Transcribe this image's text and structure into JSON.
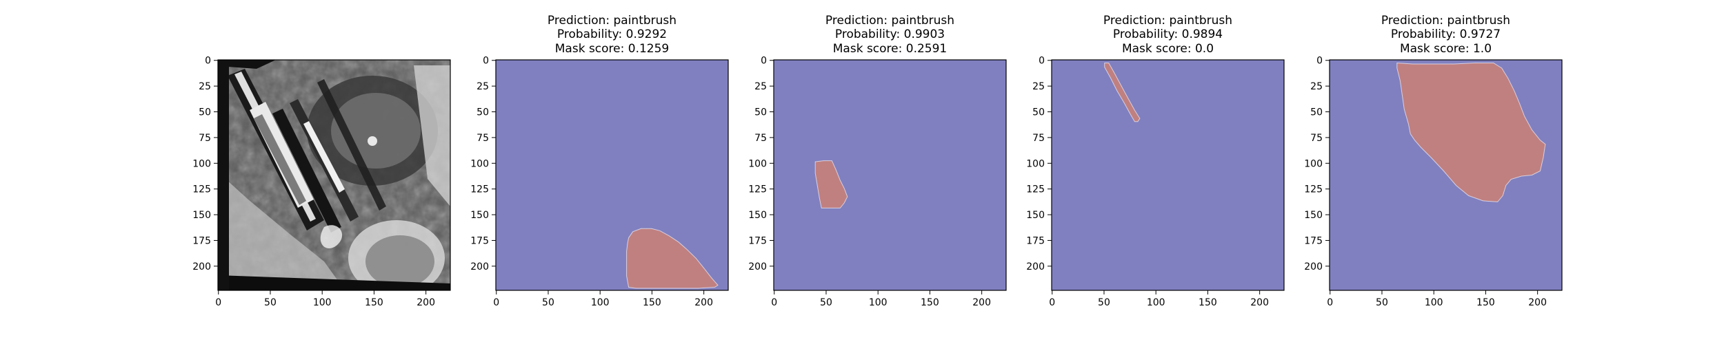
{
  "chart_data": [
    {
      "type": "heatmap",
      "subtype": "grayscale-image",
      "subject": "grayscale photograph of paintbrushes (input image)",
      "title_lines": [],
      "xticks": [
        0,
        50,
        100,
        150,
        200
      ],
      "yticks": [
        0,
        25,
        50,
        75,
        100,
        125,
        150,
        175,
        200
      ],
      "xlim": [
        0,
        224
      ],
      "ylim": [
        224,
        0
      ]
    },
    {
      "type": "heatmap",
      "subtype": "mask",
      "title_lines": [
        "Prediction: paintbrush",
        "Probability: 0.9292",
        "Mask score: 0.1259"
      ],
      "xticks": [
        0,
        50,
        100,
        150,
        200
      ],
      "yticks": [
        0,
        25,
        50,
        75,
        100,
        125,
        150,
        175,
        200
      ],
      "xlim": [
        0,
        224
      ],
      "ylim": [
        224,
        0
      ],
      "background_color": "#8080c0",
      "mask_color": "#c08080",
      "mask_polygon": [
        [
          128,
          173
        ],
        [
          132,
          167
        ],
        [
          140,
          164
        ],
        [
          150,
          164
        ],
        [
          158,
          166
        ],
        [
          167,
          171
        ],
        [
          176,
          177
        ],
        [
          184,
          184
        ],
        [
          193,
          193
        ],
        [
          201,
          203
        ],
        [
          208,
          212
        ],
        [
          214,
          219
        ],
        [
          211,
          221
        ],
        [
          195,
          222
        ],
        [
          180,
          222
        ],
        [
          165,
          222
        ],
        [
          150,
          222
        ],
        [
          135,
          222
        ],
        [
          128,
          221
        ],
        [
          126,
          210
        ],
        [
          126,
          198
        ],
        [
          126,
          186
        ],
        [
          127,
          178
        ]
      ]
    },
    {
      "type": "heatmap",
      "subtype": "mask",
      "title_lines": [
        "Prediction: paintbrush",
        "Probability: 0.9903",
        "Mask score: 0.2591"
      ],
      "xticks": [
        0,
        50,
        100,
        150,
        200
      ],
      "yticks": [
        0,
        25,
        50,
        75,
        100,
        125,
        150,
        175,
        200
      ],
      "xlim": [
        0,
        224
      ],
      "ylim": [
        224,
        0
      ],
      "background_color": "#8080c0",
      "mask_color": "#c08080",
      "mask_polygon": [
        [
          40,
          99
        ],
        [
          48,
          98
        ],
        [
          56,
          98
        ],
        [
          60,
          107
        ],
        [
          64,
          117
        ],
        [
          68,
          125
        ],
        [
          71,
          133
        ],
        [
          68,
          139
        ],
        [
          64,
          144
        ],
        [
          55,
          144
        ],
        [
          46,
          144
        ],
        [
          44,
          134
        ],
        [
          42,
          122
        ],
        [
          40,
          110
        ]
      ]
    },
    {
      "type": "heatmap",
      "subtype": "mask",
      "title_lines": [
        "Prediction: paintbrush",
        "Probability: 0.9894",
        "Mask score: 0.0"
      ],
      "xticks": [
        0,
        50,
        100,
        150,
        200
      ],
      "yticks": [
        0,
        25,
        50,
        75,
        100,
        125,
        150,
        175,
        200
      ],
      "xlim": [
        0,
        224
      ],
      "ylim": [
        224,
        0
      ],
      "background_color": "#8080c0",
      "mask_color": "#c08080",
      "mask_polygon": [
        [
          51,
          3
        ],
        [
          55,
          3
        ],
        [
          60,
          12
        ],
        [
          67,
          25
        ],
        [
          74,
          38
        ],
        [
          80,
          49
        ],
        [
          85,
          57
        ],
        [
          83,
          60
        ],
        [
          80,
          60
        ],
        [
          76,
          53
        ],
        [
          70,
          42
        ],
        [
          63,
          30
        ],
        [
          57,
          18
        ],
        [
          51,
          7
        ]
      ]
    },
    {
      "type": "heatmap",
      "subtype": "mask",
      "title_lines": [
        "Prediction: paintbrush",
        "Probability: 0.9727",
        "Mask score: 1.0"
      ],
      "xticks": [
        0,
        50,
        100,
        150,
        200
      ],
      "yticks": [
        0,
        25,
        50,
        75,
        100,
        125,
        150,
        175,
        200
      ],
      "xlim": [
        0,
        224
      ],
      "ylim": [
        224,
        0
      ],
      "background_color": "#8080c0",
      "mask_color": "#c08080",
      "mask_polygon": [
        [
          65,
          3
        ],
        [
          80,
          4
        ],
        [
          100,
          4
        ],
        [
          120,
          4
        ],
        [
          140,
          3
        ],
        [
          158,
          3
        ],
        [
          166,
          8
        ],
        [
          172,
          18
        ],
        [
          178,
          30
        ],
        [
          183,
          42
        ],
        [
          188,
          55
        ],
        [
          195,
          68
        ],
        [
          203,
          78
        ],
        [
          208,
          82
        ],
        [
          206,
          95
        ],
        [
          203,
          108
        ],
        [
          195,
          112
        ],
        [
          185,
          113
        ],
        [
          175,
          116
        ],
        [
          170,
          122
        ],
        [
          167,
          132
        ],
        [
          162,
          138
        ],
        [
          148,
          137
        ],
        [
          134,
          132
        ],
        [
          122,
          122
        ],
        [
          110,
          108
        ],
        [
          98,
          95
        ],
        [
          88,
          85
        ],
        [
          82,
          78
        ],
        [
          78,
          72
        ],
        [
          76,
          62
        ],
        [
          72,
          48
        ],
        [
          70,
          34
        ],
        [
          68,
          20
        ],
        [
          65,
          8
        ]
      ]
    }
  ]
}
